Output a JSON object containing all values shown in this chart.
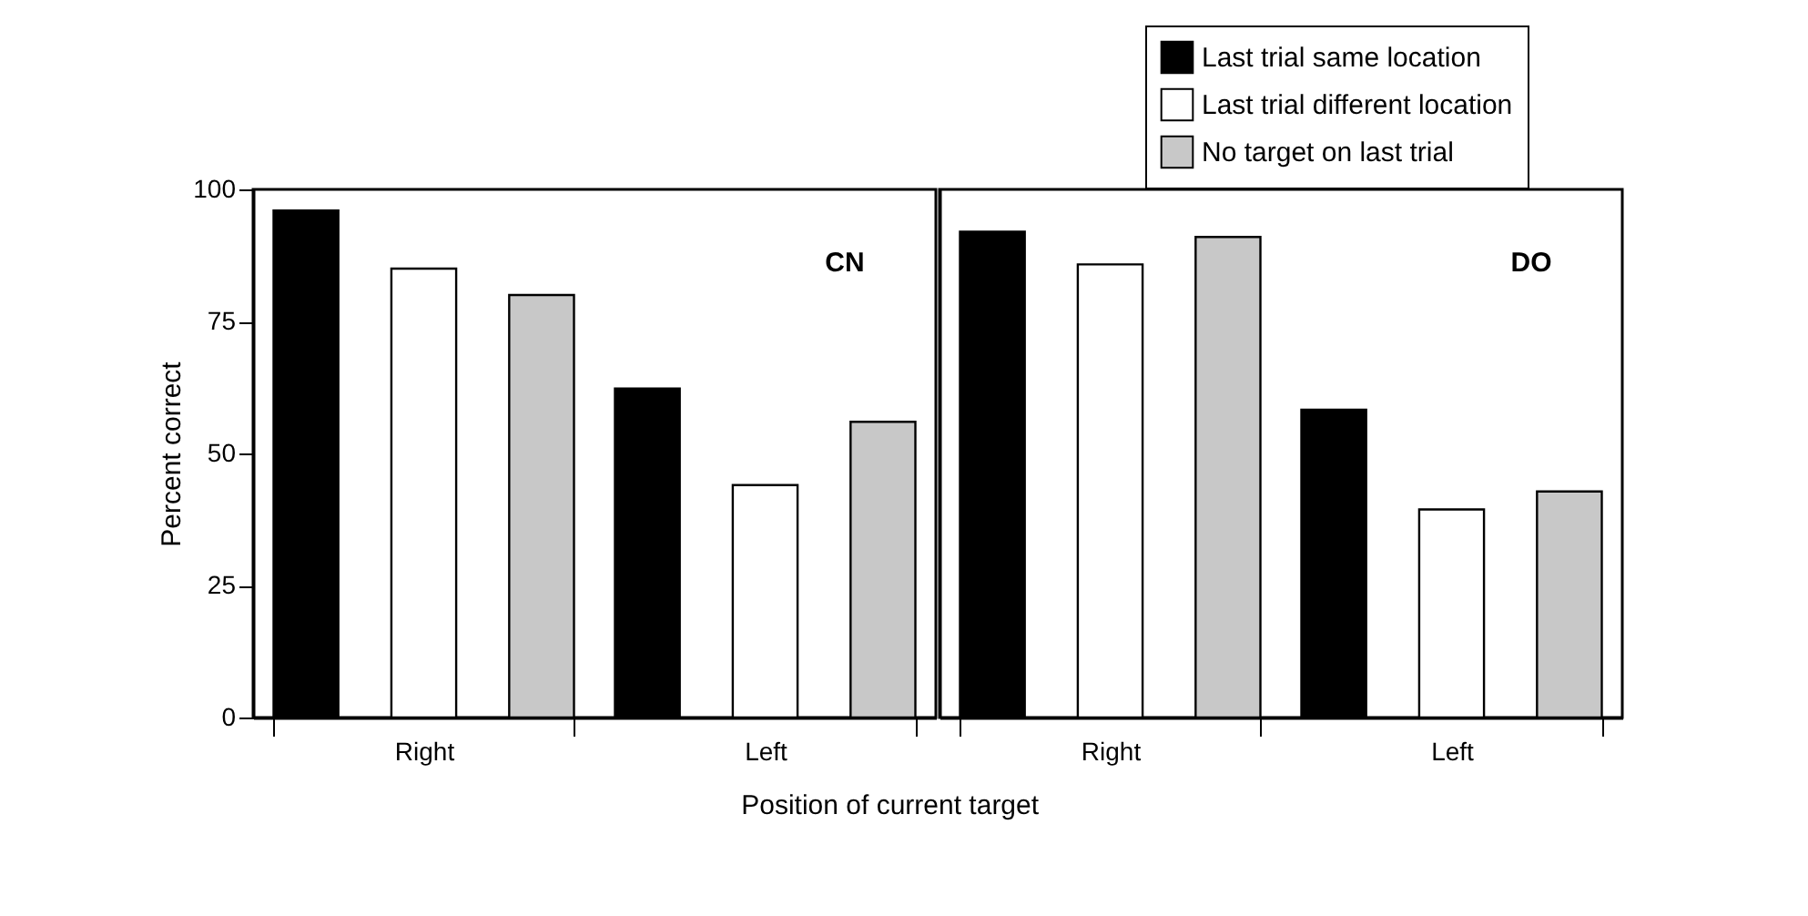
{
  "chart_data": [
    {
      "type": "bar",
      "categories": [
        "Right",
        "Left"
      ],
      "xlabel": "Position of current target",
      "ylabel": "Percent correct",
      "annotations": [
        "CN"
      ],
      "ylim": [
        0,
        100
      ],
      "yticks": [
        0,
        25,
        50,
        75,
        100
      ],
      "grid": false,
      "series": [
        {
          "color": "#000000",
          "values": [
            96,
            62.3
          ]
        },
        {
          "color": "#ffffff",
          "values": [
            85,
            44
          ]
        },
        {
          "color": "#c8c8c8",
          "values": [
            80,
            56
          ]
        }
      ]
    },
    {
      "type": "bar",
      "categories": [
        "Right",
        "Left"
      ],
      "annotations": [
        "DO"
      ],
      "ylim": [
        0,
        100
      ],
      "yticks": [
        0,
        25,
        50,
        75,
        100
      ],
      "grid": false,
      "legend": "top right",
      "tick_labels": "x",
      "series": [
        {
          "name": "Last trial same location",
          "color": "#000000",
          "values": [
            92,
            58.3
          ]
        },
        {
          "name": "Last trial different location",
          "color": "#ffffff",
          "values": [
            85.8,
            39.4
          ]
        },
        {
          "name": "No target on last trial",
          "color": "#c8c8c8",
          "values": [
            91,
            42.8
          ]
        }
      ]
    }
  ]
}
